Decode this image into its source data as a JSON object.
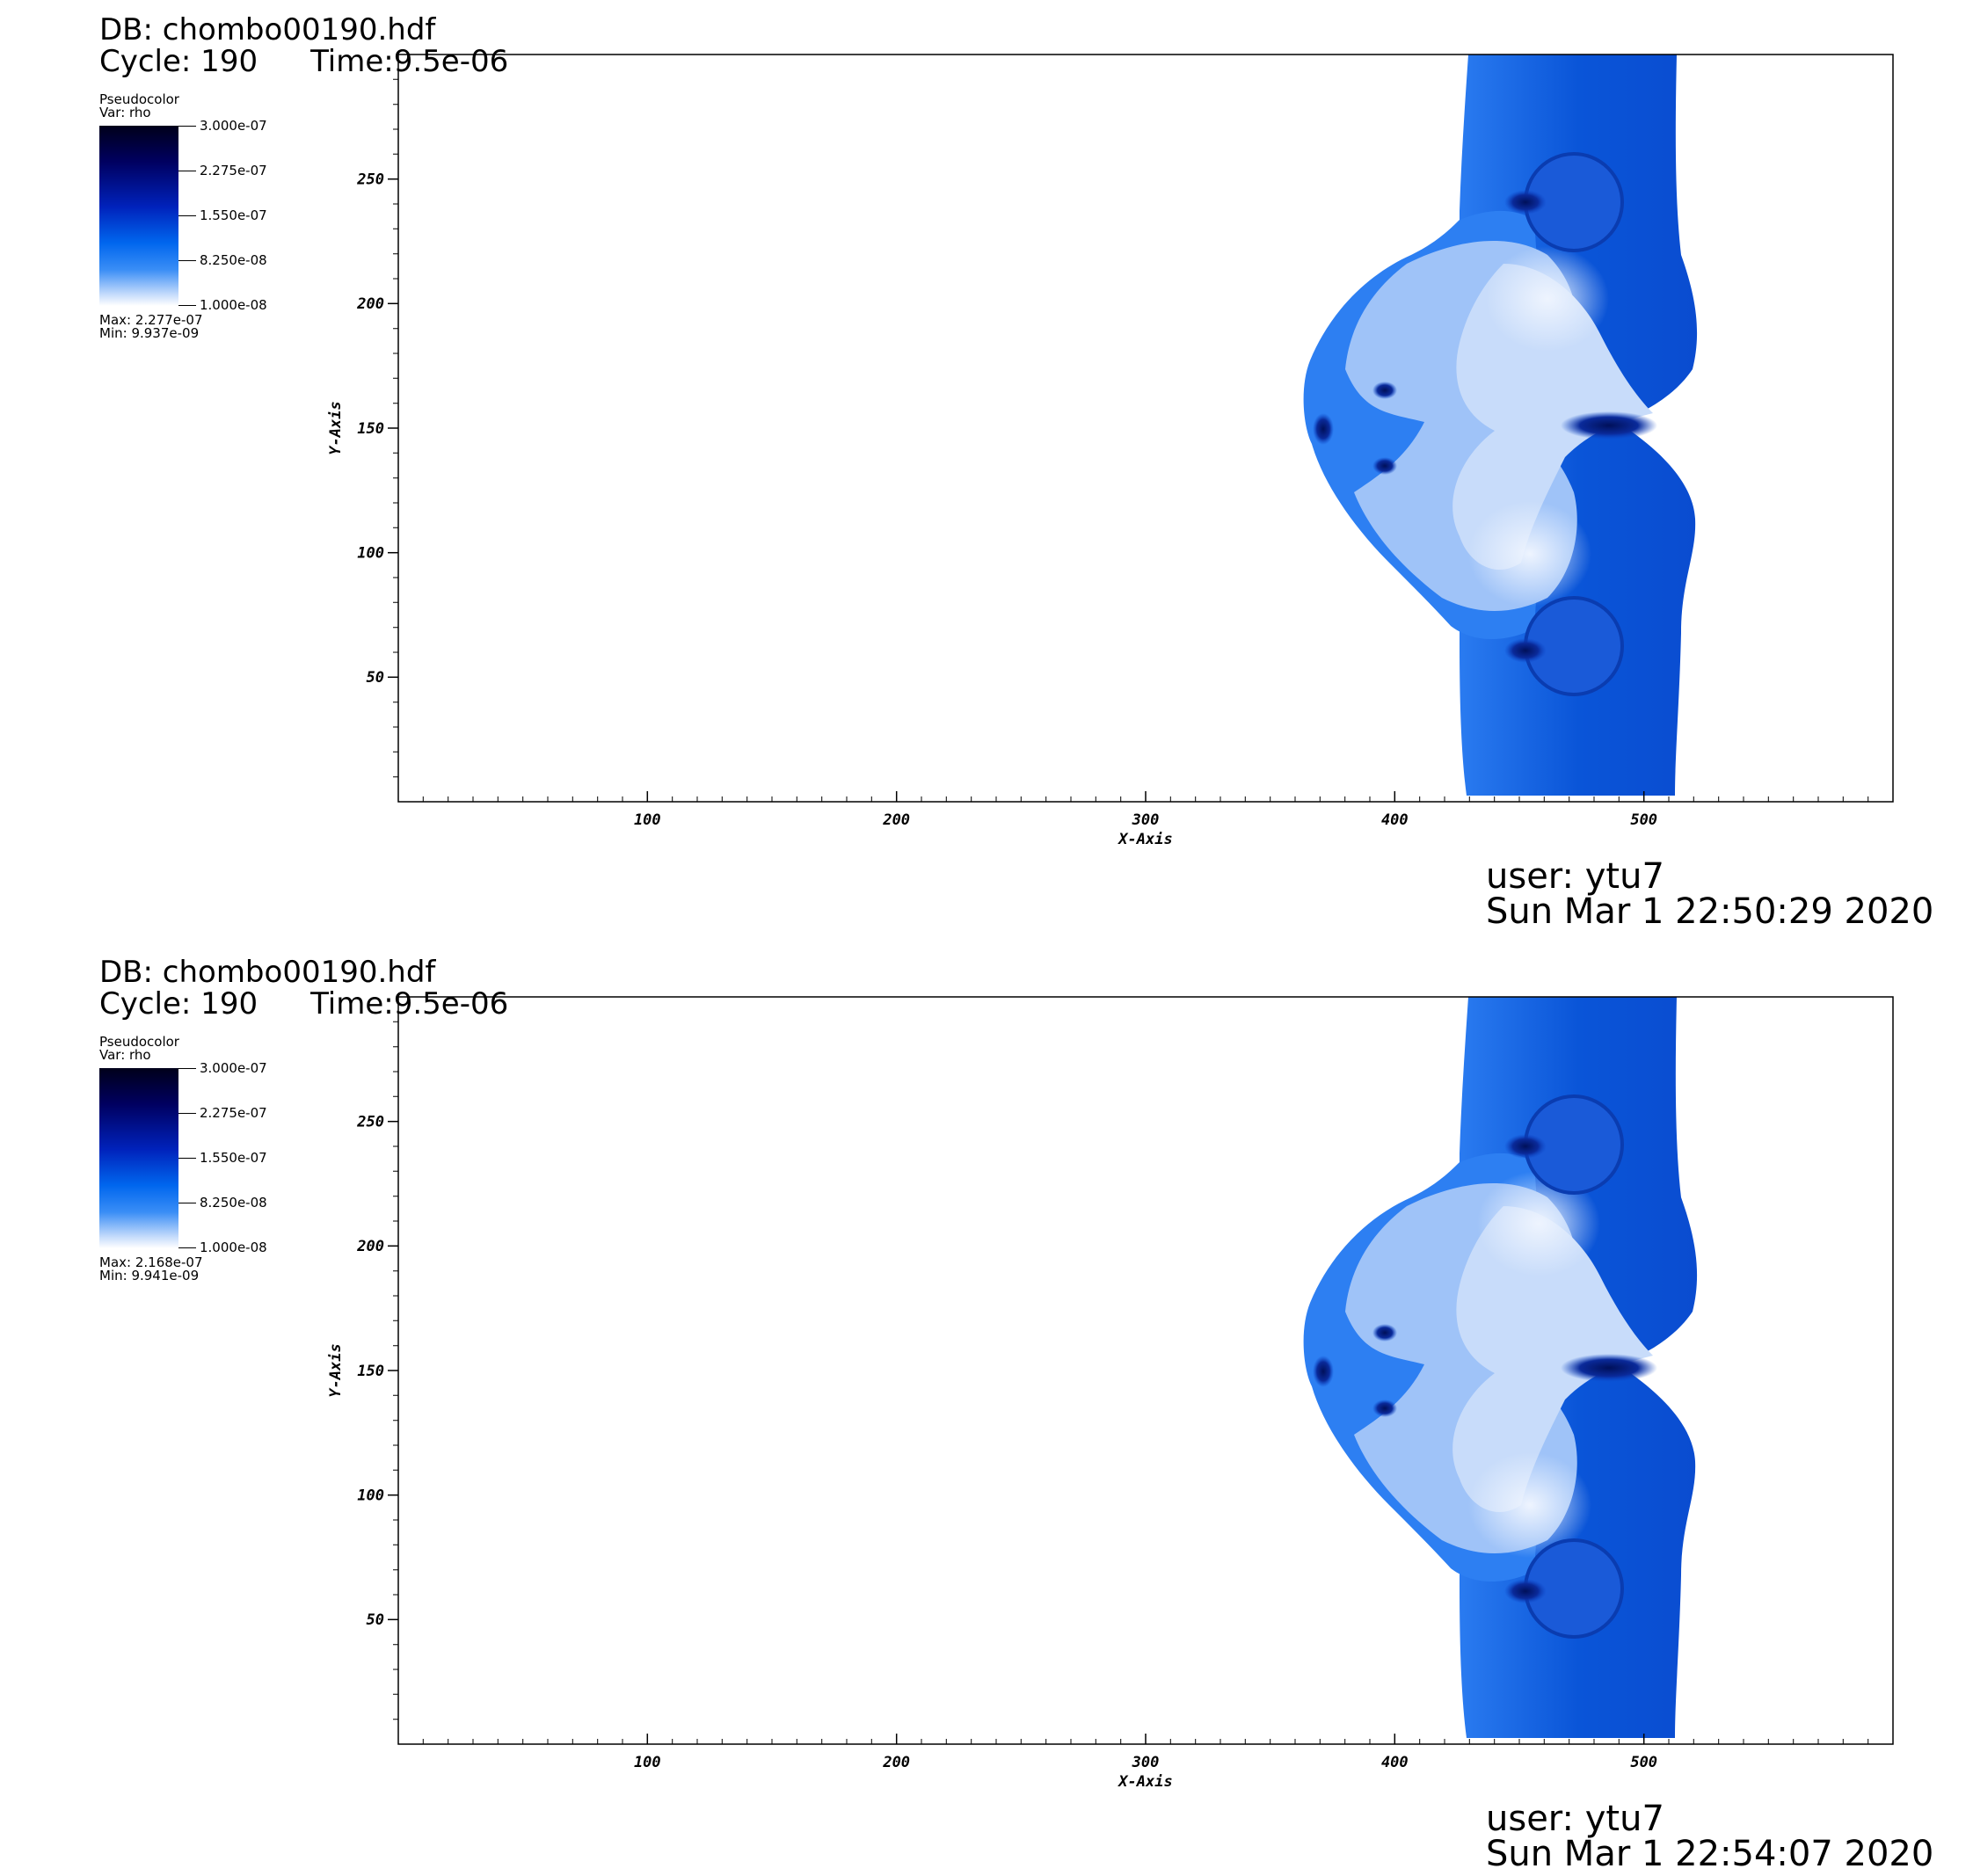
{
  "colors": {
    "field_light": "#d8e6fb",
    "field_mid": "#2a7bf0",
    "field_deep": "#0a44c8",
    "field_dark": "#00105a",
    "axis": "#000000",
    "background": "#ffffff"
  },
  "chart_data": [
    {
      "type": "heatmap",
      "db_label": "DB: chombo00190.hdf",
      "cycle_label": "Cycle: 190",
      "time_label": "Time:9.5e-06",
      "legend": {
        "plot_type": "Pseudocolor",
        "var_label": "Var: rho",
        "ticks": [
          "3.000e-07",
          "2.275e-07",
          "1.550e-07",
          "8.250e-08",
          "1.000e-08"
        ],
        "range": [
          1e-08,
          3e-07
        ],
        "max_label": "Max:  2.277e-07",
        "min_label": "Min:  9.937e-09"
      },
      "xlabel": "X-Axis",
      "ylabel": "Y-Axis",
      "xlim": [
        0,
        600
      ],
      "ylim": [
        0,
        300
      ],
      "x_ticks": [
        100,
        200,
        300,
        400,
        500
      ],
      "y_ticks": [
        50,
        100,
        150,
        200,
        250
      ],
      "x_tick_labels": [
        "100",
        "200",
        "300",
        "400",
        "500"
      ],
      "y_tick_labels": [
        "50",
        "100",
        "150",
        "200",
        "250"
      ],
      "user_label": "user: ytu7",
      "date_label": "Sun Mar  1 22:50:29 2020"
    },
    {
      "type": "heatmap",
      "db_label": "DB: chombo00190.hdf",
      "cycle_label": "Cycle: 190",
      "time_label": "Time:9.5e-06",
      "legend": {
        "plot_type": "Pseudocolor",
        "var_label": "Var: rho",
        "ticks": [
          "3.000e-07",
          "2.275e-07",
          "1.550e-07",
          "8.250e-08",
          "1.000e-08"
        ],
        "range": [
          1e-08,
          3e-07
        ],
        "max_label": "Max:  2.168e-07",
        "min_label": "Min:  9.941e-09"
      },
      "xlabel": "X-Axis",
      "ylabel": "Y-Axis",
      "xlim": [
        0,
        600
      ],
      "ylim": [
        0,
        300
      ],
      "x_ticks": [
        100,
        200,
        300,
        400,
        500
      ],
      "y_ticks": [
        50,
        100,
        150,
        200,
        250
      ],
      "x_tick_labels": [
        "100",
        "200",
        "300",
        "400",
        "500"
      ],
      "y_tick_labels": [
        "50",
        "100",
        "150",
        "200",
        "250"
      ],
      "user_label": "user: ytu7",
      "date_label": "Sun Mar  1 22:54:07 2020"
    }
  ]
}
